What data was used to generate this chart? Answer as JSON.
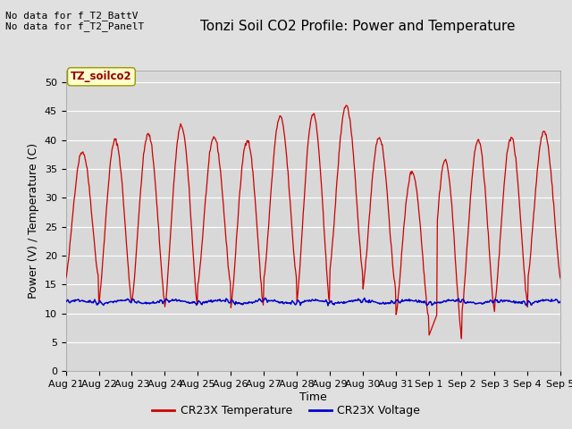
{
  "title": "Tonzi Soil CO2 Profile: Power and Temperature",
  "ylabel": "Power (V) / Temperature (C)",
  "xlabel": "Time",
  "top_left_text_line1": "No data for f_T2_BattV",
  "top_left_text_line2": "No data for f_T2_PanelT",
  "legend_box_label": "TZ_soilco2",
  "ylim": [
    0,
    52
  ],
  "yticks": [
    0,
    5,
    10,
    15,
    20,
    25,
    30,
    35,
    40,
    45,
    50
  ],
  "x_tick_labels": [
    "Aug 21",
    "Aug 22",
    "Aug 23",
    "Aug 24",
    "Aug 25",
    "Aug 26",
    "Aug 27",
    "Aug 28",
    "Aug 29",
    "Aug 30",
    "Aug 31",
    "Sep 1",
    "Sep 2",
    "Sep 3",
    "Sep 4",
    "Sep 5"
  ],
  "background_color": "#e0e0e0",
  "plot_bg_color": "#d8d8d8",
  "legend_line1_color": "#cc0000",
  "legend_line2_color": "#0000cc",
  "legend_label1": "CR23X Temperature",
  "legend_label2": "CR23X Voltage",
  "red_line_color": "#cc0000",
  "blue_line_color": "#0000cc",
  "grid_color": "#ffffff",
  "title_fontsize": 11,
  "axis_label_fontsize": 9,
  "tick_fontsize": 8
}
